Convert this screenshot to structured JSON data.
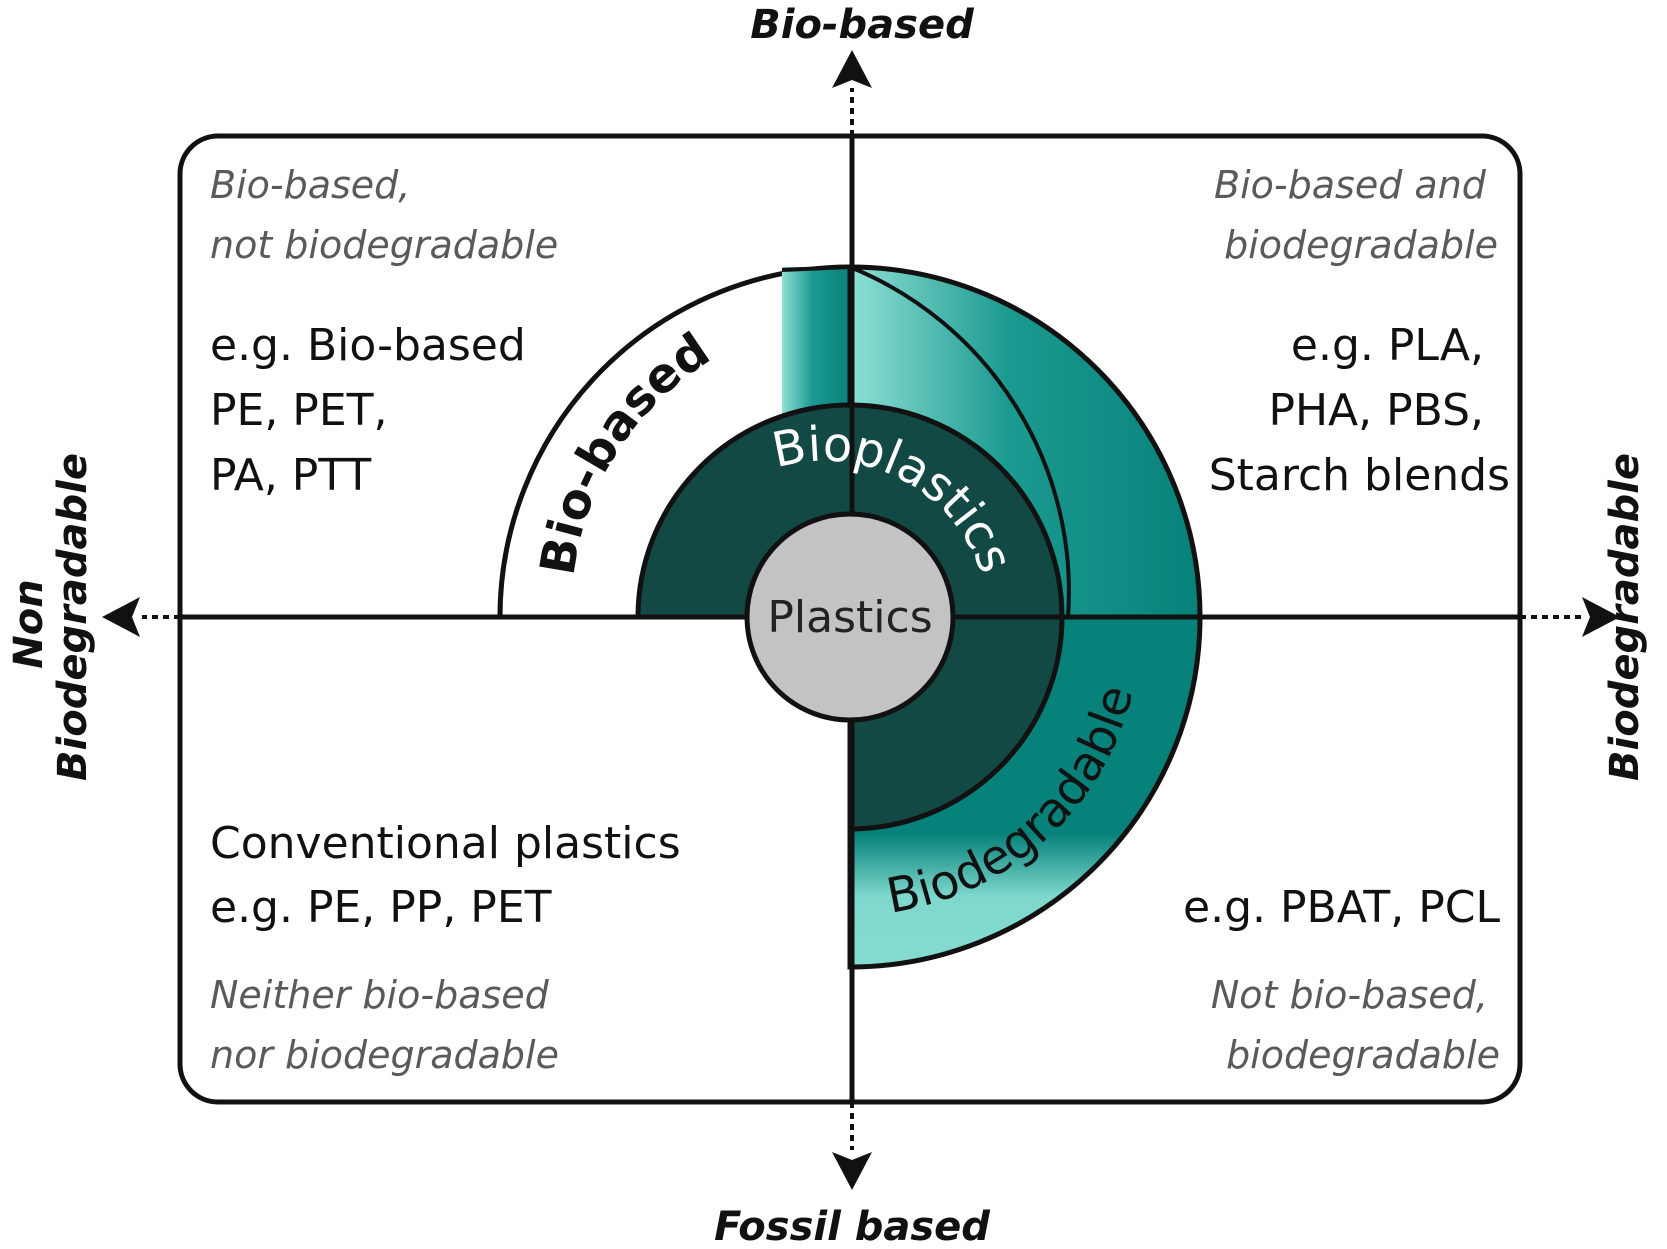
{
  "axes": {
    "top": "Bio-based",
    "bottom": "Fossil based",
    "left_line1": "Non",
    "left_line2": "Biodegradable",
    "right": "Biodegradable"
  },
  "quadrants": {
    "top_left": {
      "category": [
        "Bio-based,",
        "not biodegradable"
      ],
      "examples": [
        "e.g. Bio-based",
        "PE, PET,",
        "PA, PTT"
      ]
    },
    "top_right": {
      "category": [
        "Bio-based and",
        "biodegradable"
      ],
      "examples": [
        "e.g. PLA,",
        "PHA, PBS,",
        "Starch blends"
      ]
    },
    "bottom_left": {
      "examples": [
        "Conventional plastics",
        "e.g. PE, PP, PET"
      ],
      "category": [
        "Neither bio-based",
        "nor biodegradable"
      ]
    },
    "bottom_right": {
      "examples": [
        "e.g. PBAT, PCL"
      ],
      "category": [
        "Not bio-based,",
        "biodegradable"
      ]
    }
  },
  "rings": {
    "center": "Plastics",
    "bioplastics": "Bioplastics",
    "bio_based": "Bio-based",
    "biodegradable": "Biodegradable"
  },
  "colors": {
    "dark_teal": "#134944",
    "teal": "#07827a",
    "light_teal": "#86dbd0",
    "center_gray": "#c3c3c5",
    "outline": "#111111"
  }
}
